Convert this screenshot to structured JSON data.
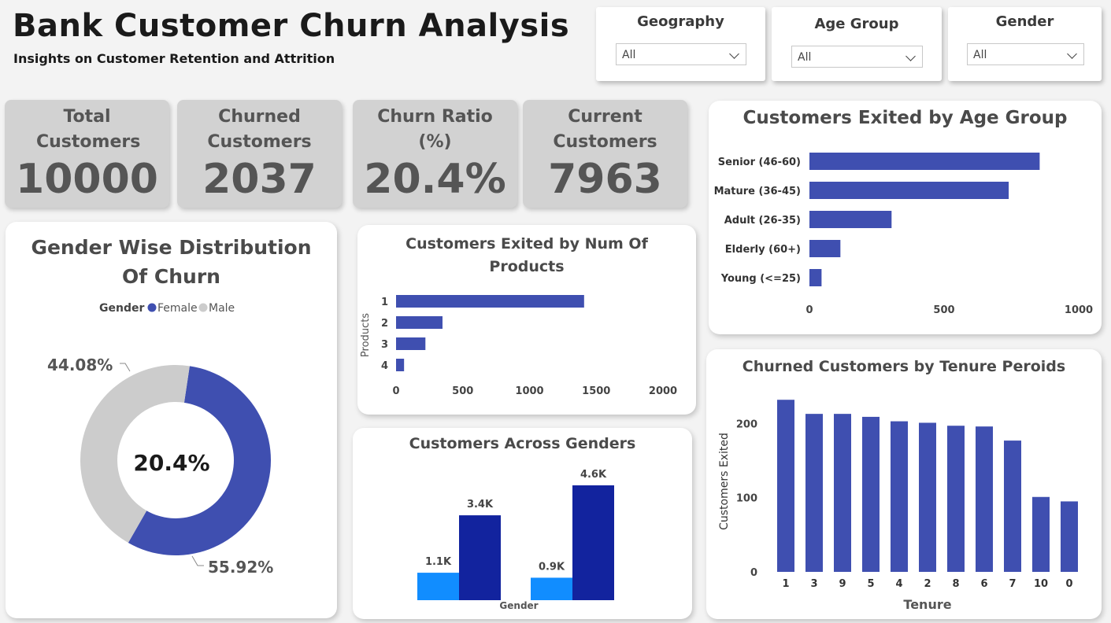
{
  "header": {
    "title": "Bank Customer Churn Analysis",
    "subtitle": "Insights on Customer Retention and Attrition"
  },
  "slicers": [
    {
      "label": "Geography",
      "value": "All"
    },
    {
      "label": "Age Group",
      "value": "All"
    },
    {
      "label": "Gender",
      "value": "All"
    }
  ],
  "kpis": [
    {
      "label": "Total Customers",
      "value": "10000"
    },
    {
      "label": "Churned Customers",
      "value": "2037"
    },
    {
      "label": "Churn Ratio (%)",
      "value": "20.4%"
    },
    {
      "label": "Current Customers",
      "value": "7963"
    }
  ],
  "colors": {
    "primary": "#3f4fb0",
    "dark_blue": "#12239e",
    "light_blue": "#118dff",
    "male_gray": "#cccccc",
    "kpi_bg": "#d2d2d2"
  },
  "chart_data": [
    {
      "id": "gender_donut",
      "type": "pie",
      "title": "Gender Wise Distribution Of Churn",
      "legend_title": "Gender",
      "legend_position": "top",
      "center_label": "20.4%",
      "slices": [
        {
          "name": "Female",
          "value": 55.92,
          "label": "55.92%",
          "color": "#3f4fb0"
        },
        {
          "name": "Male",
          "value": 44.08,
          "label": "44.08%",
          "color": "#cccccc"
        }
      ]
    },
    {
      "id": "products_bar",
      "type": "bar",
      "orientation": "horizontal",
      "title": "Customers Exited by Num Of Products",
      "ylabel": "Products",
      "xlabel": "",
      "categories": [
        "1",
        "2",
        "3",
        "4"
      ],
      "values": [
        1409,
        348,
        220,
        60
      ],
      "xlim": [
        0,
        2000
      ],
      "ticks": [
        "0",
        "500",
        "1000",
        "1500",
        "2000"
      ]
    },
    {
      "id": "gender_bar",
      "type": "bar",
      "title": "Customers Across Genders",
      "xlabel": "Gender",
      "groups": [
        {
          "values": [
            1.1,
            3.4
          ],
          "labels": [
            "1.1K",
            "3.4K"
          ]
        },
        {
          "values": [
            0.9,
            4.6
          ],
          "labels": [
            "0.9K",
            "4.6K"
          ]
        }
      ],
      "ylim": [
        0,
        4.6
      ]
    },
    {
      "id": "age_bar",
      "type": "bar",
      "orientation": "horizontal",
      "title": "Customers Exited by Age Group",
      "categories": [
        "Senior (46-60)",
        "Mature (36-45)",
        "Adult (26-35)",
        "Elderly (60+)",
        "Young (<=25)"
      ],
      "values": [
        855,
        740,
        305,
        115,
        45
      ],
      "xlim": [
        0,
        1000
      ],
      "ticks": [
        "0",
        "500",
        "1000"
      ]
    },
    {
      "id": "tenure_bar",
      "type": "bar",
      "title": "Churned Customers by Tenure Peroids",
      "xlabel": "Tenure",
      "ylabel": "Customers Exited",
      "categories": [
        "1",
        "3",
        "9",
        "5",
        "4",
        "2",
        "8",
        "6",
        "7",
        "10",
        "0"
      ],
      "values": [
        232,
        213,
        213,
        209,
        203,
        201,
        197,
        196,
        177,
        101,
        95
      ],
      "ylim": [
        0,
        250
      ],
      "ticks": [
        "0",
        "100",
        "200"
      ]
    }
  ]
}
